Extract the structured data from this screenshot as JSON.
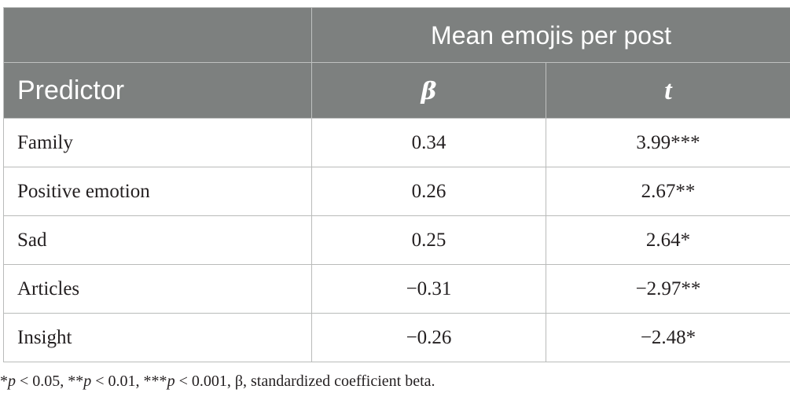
{
  "table": {
    "group_header": "Mean emojis per post",
    "columns": [
      "Predictor",
      "β",
      "t"
    ],
    "rows": [
      {
        "predictor": "Family",
        "beta": "0.34",
        "t": "3.99***"
      },
      {
        "predictor": "Positive emotion",
        "beta": "0.26",
        "t": "2.67**"
      },
      {
        "predictor": "Sad",
        "beta": "0.25",
        "t": "2.64*"
      },
      {
        "predictor": "Articles",
        "beta": "−0.31",
        "t": "−2.97**"
      },
      {
        "predictor": "Insight",
        "beta": "−0.26",
        "t": "−2.48*"
      }
    ]
  },
  "footnote": {
    "s1": "*",
    "p": "p",
    "s2": " < 0.05, **",
    "s3": " < 0.01, ***",
    "s4": " < 0.001, β, standardized coefficient beta."
  },
  "colors": {
    "header_bg": "#7d807f",
    "header_text": "#ffffff",
    "grid": "#b9bbba",
    "body_text": "#231f20"
  }
}
